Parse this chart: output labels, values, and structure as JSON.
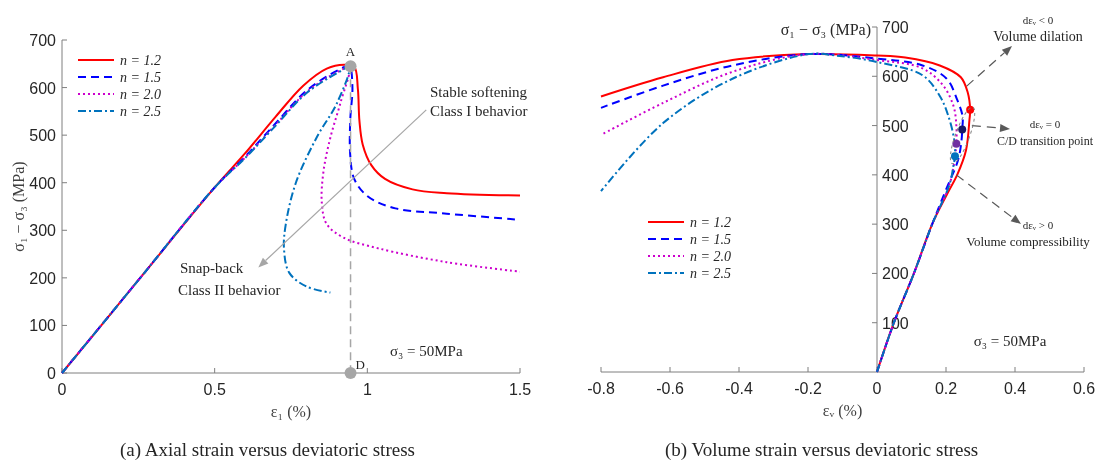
{
  "chart_data": [
    {
      "type": "line",
      "title": "(a) Axial strain versus deviatoric stress",
      "xlabel": "ε₁ (%)",
      "ylabel": "σ₁ − σ₃ (MPa)",
      "xlim": [
        0,
        1.5
      ],
      "ylim": [
        0,
        700
      ],
      "xticks": [
        0,
        0.5,
        1,
        1.5
      ],
      "yticks": [
        0,
        100,
        200,
        300,
        400,
        500,
        600,
        700
      ],
      "legend": "top left",
      "annotations": [
        "Stable softening",
        "Class I behavior",
        "Snap-back",
        "Class II behavior",
        "σ₃ = 50MPa",
        {
          "text": "A",
          "x": 0.945,
          "y": 645
        },
        {
          "text": "D",
          "x": 0.945,
          "y": 0
        }
      ],
      "series": [
        {
          "name": "n = 1.2",
          "color": "#ff0000",
          "line_style": "solid",
          "x": [
            0,
            0.25,
            0.5,
            0.6,
            0.7,
            0.79,
            0.867,
            0.924,
            0.957,
            0.969,
            0.974,
            0.985,
            1.013,
            1.058,
            1.148,
            1.26,
            1.5
          ],
          "values": [
            0,
            195,
            390,
            462,
            539,
            604,
            640,
            648,
            644,
            597,
            531,
            480,
            437,
            408,
            386,
            378,
            373
          ]
        },
        {
          "name": "n = 1.5",
          "color": "#0000ff",
          "line_style": "dashed",
          "x": [
            0,
            0.25,
            0.5,
            0.6,
            0.7,
            0.8,
            0.9,
            0.94,
            0.951,
            0.944,
            0.944,
            0.957,
            1.002,
            1.092,
            1.26,
            1.5
          ],
          "values": [
            0,
            195,
            390,
            455,
            525,
            593,
            635,
            645,
            604,
            531,
            458,
            408,
            371,
            346,
            335,
            322
          ]
        },
        {
          "name": "n = 2.0",
          "color": "#cc00cc",
          "line_style": "dotted",
          "x": [
            0,
            0.25,
            0.5,
            0.6,
            0.7,
            0.8,
            0.9,
            0.94,
            0.912,
            0.879,
            0.856,
            0.851,
            0.867,
            0.924,
            1.036,
            1.26,
            1.5
          ],
          "values": [
            0,
            195,
            390,
            453,
            522,
            590,
            632,
            642,
            568,
            495,
            422,
            357,
            313,
            284,
            262,
            233,
            213
          ]
        },
        {
          "name": "n = 2.5",
          "color": "#0072bd",
          "line_style": "dashdot",
          "x": [
            0,
            0.25,
            0.5,
            0.6,
            0.7,
            0.8,
            0.9,
            0.94,
            0.901,
            0.834,
            0.766,
            0.733,
            0.727,
            0.744,
            0.8,
            0.879
          ],
          "values": [
            0,
            195,
            390,
            452,
            520,
            588,
            630,
            642,
            568,
            495,
            400,
            313,
            262,
            211,
            182,
            169
          ]
        },
        {
          "type": "line",
          "color": "#a6a6a6",
          "line_style": "dashed",
          "marker": "circle",
          "x": [
            0.945,
            0.945
          ],
          "values": [
            645,
            0
          ]
        }
      ]
    },
    {
      "type": "line",
      "title": "(b) Volume strain versus deviatoric stress",
      "xlabel": "εᵥ (%)",
      "ylabel": "σ₁ − σ₃ (MPa)",
      "xlim": [
        -0.8,
        0.6
      ],
      "ylim": [
        0,
        700
      ],
      "xticks": [
        -0.8,
        -0.6,
        -0.4,
        -0.2,
        0,
        0.2,
        0.4,
        0.6
      ],
      "yticks": [
        100,
        200,
        300,
        400,
        500,
        600,
        700
      ],
      "legend": "left",
      "annotations": [
        "dεᵥ < 0",
        {
          "text": "Volume dilation",
          "x": 0.26,
          "y": 580
        },
        "dεᵥ = 0",
        {
          "text": "C/D transition point",
          "x": 0.275,
          "y": 500
        },
        {
          "text": "dεᵥ > 0",
          "x": 0.23,
          "y": 400
        },
        "Volume compressibility",
        "σ₃ = 50MPa"
      ],
      "series": [
        {
          "name": "n = 1.2",
          "color": "#ff0000",
          "line_style": "solid",
          "x": [
            0,
            0.049,
            0.107,
            0.16,
            0.2025,
            0.233,
            0.258,
            0.268,
            0.27,
            0.263,
            0.243,
            0.182,
            0.082,
            0,
            -0.198,
            -0.419,
            -0.62,
            -0.8
          ],
          "values": [
            0,
            100,
            200,
            300,
            360,
            401,
            450,
            512,
            532,
            567,
            598,
            622,
            638,
            642,
            645,
            633,
            598,
            559
          ]
        },
        {
          "name": "n = 1.5",
          "color": "#0000ff",
          "line_style": "dashed",
          "x": [
            0,
            0.049,
            0.107,
            0.16,
            0.2,
            0.235,
            0.245,
            0.247,
            0.248,
            0.232,
            0.202,
            0.132,
            0,
            -0.198,
            -0.419,
            -0.62,
            -0.8
          ],
          "values": [
            0,
            100,
            200,
            300,
            370,
            430,
            470,
            492,
            519,
            553,
            595,
            622,
            636,
            645,
            622,
            581,
            536
          ]
        },
        {
          "name": "n = 2.0",
          "color": "#cc00cc",
          "line_style": "dotted",
          "x": [
            0,
            0.049,
            0.107,
            0.16,
            0.21,
            0.225,
            0.23,
            0.23,
            0.222,
            0.192,
            0.132,
            0,
            -0.198,
            -0.419,
            -0.62,
            -0.8
          ],
          "values": [
            0,
            100,
            200,
            300,
            380,
            430,
            463,
            500,
            539,
            581,
            616,
            633,
            645,
            609,
            546,
            481
          ]
        },
        {
          "name": "n = 2.5",
          "color": "#0072bd",
          "line_style": "dashdot",
          "x": [
            0,
            0.049,
            0.107,
            0.16,
            0.21,
            0.222,
            0.226,
            0.224,
            0.207,
            0.182,
            0.132,
            0,
            -0.118,
            -0.198,
            -0.419,
            -0.62,
            -0.8
          ],
          "values": [
            0,
            100,
            200,
            300,
            380,
            420,
            438,
            470,
            519,
            560,
            602,
            629,
            642,
            645,
            595,
            505,
            367
          ]
        },
        {
          "type": "scatter",
          "marker": "circle",
          "x": [
            0.27,
            0.247,
            0.23,
            0.226
          ],
          "values": [
            532,
            492,
            463,
            438
          ],
          "colors": [
            "#ff0000",
            "#1a1a66",
            "#7030a0",
            "#0072bd"
          ]
        }
      ]
    }
  ]
}
